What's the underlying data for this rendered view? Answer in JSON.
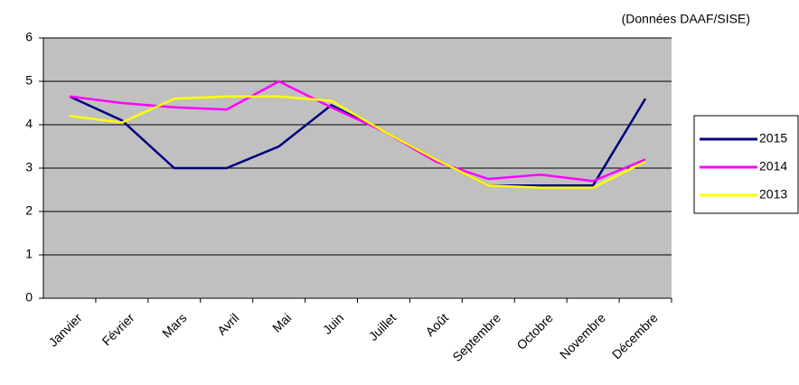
{
  "chart_data": {
    "type": "line",
    "subtitle": "(Données DAAF/SISE)",
    "categories": [
      "Janvier",
      "Février",
      "Mars",
      "Avril",
      "Mai",
      "Juin",
      "Juillet",
      "Août",
      "Septembre",
      "Octobre",
      "Novembre",
      "Décembre"
    ],
    "series": [
      {
        "name": "2015",
        "color": "#000080",
        "values": [
          4.65,
          4.1,
          3.0,
          3.0,
          3.5,
          4.45,
          3.85,
          3.2,
          2.6,
          2.6,
          2.6,
          4.6
        ]
      },
      {
        "name": "2014",
        "color": "#ff00ff",
        "values": [
          4.65,
          4.5,
          4.4,
          4.35,
          5.0,
          4.4,
          3.85,
          3.15,
          2.75,
          2.85,
          2.7,
          3.2
        ]
      },
      {
        "name": "2013",
        "color": "#ffff00",
        "values": [
          4.2,
          4.05,
          4.6,
          4.65,
          4.65,
          4.55,
          3.85,
          3.2,
          2.6,
          2.55,
          2.55,
          3.15
        ]
      }
    ],
    "ylim": [
      0,
      6
    ],
    "yticks": [
      0,
      1,
      2,
      3,
      4,
      5,
      6
    ],
    "grid": true,
    "legend": "right"
  }
}
